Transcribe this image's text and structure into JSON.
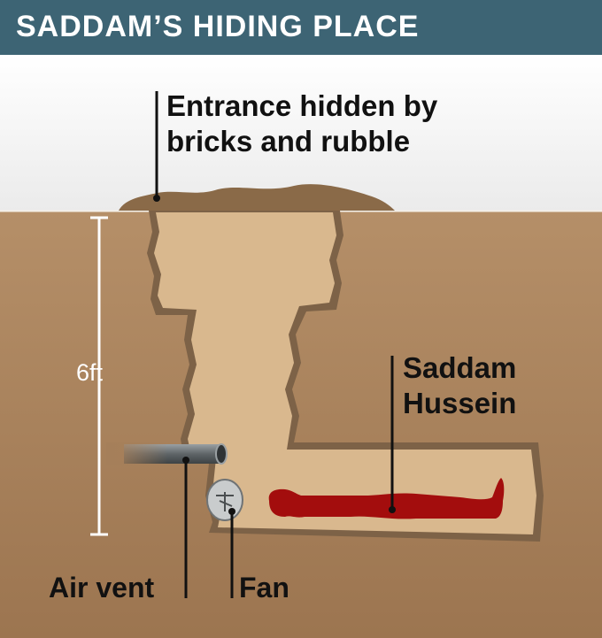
{
  "title": "SADDAM’S HIDING PLACE",
  "labels": {
    "entrance_line1": "Entrance hidden by",
    "entrance_line2": "bricks and rubble",
    "person_line1": "Saddam",
    "person_line2": "Hussein",
    "depth": "6ft",
    "air_vent": "Air vent",
    "fan": "Fan"
  },
  "colors": {
    "header": "#3d6474",
    "soil": "#a57f5a",
    "hole": "#d9b88e",
    "hole_edge": "#8a6d50",
    "rubble": "#8a6a48",
    "figure": "#a30d0d"
  },
  "icons": [
    "air-vent-pipe-icon",
    "fan-icon",
    "person-figure-icon"
  ]
}
